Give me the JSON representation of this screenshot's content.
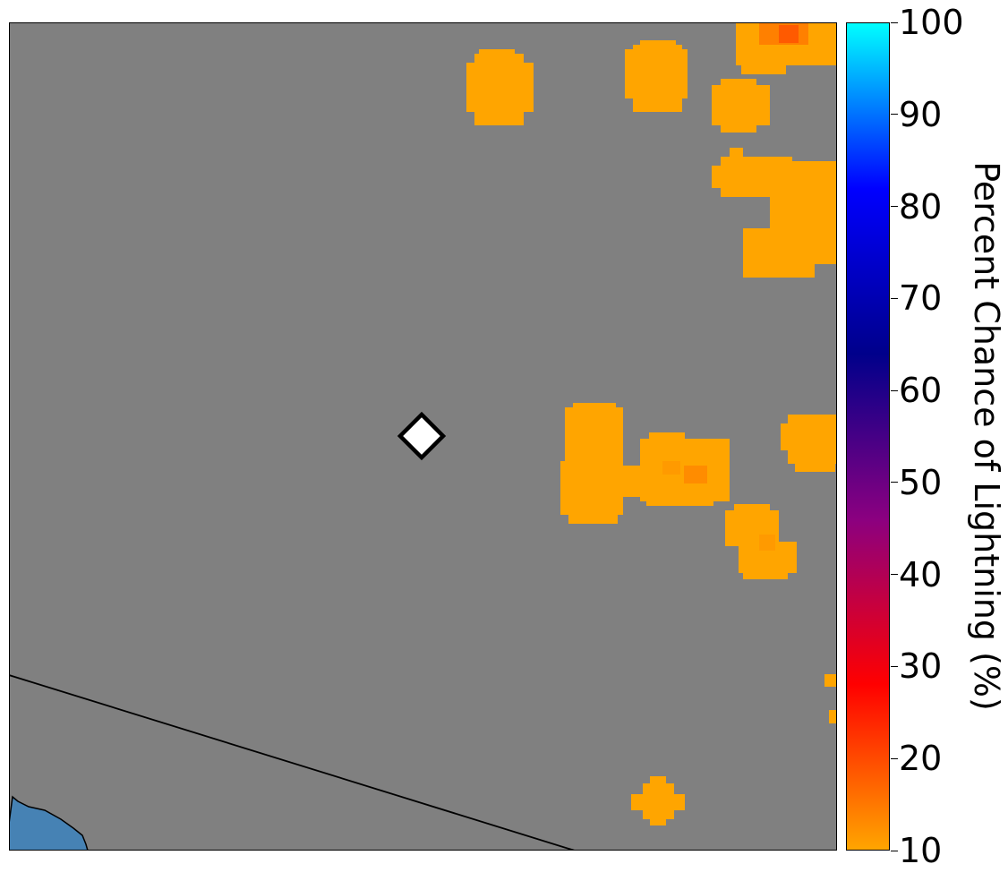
{
  "map": {
    "background_color": "#808080",
    "water_color": "#4682b4",
    "boundary_color": "#000000",
    "marker": {
      "shape": "diamond",
      "fill": "#ffffff",
      "stroke": "#000000"
    },
    "probability_patches": [
      {
        "name": "patch-north-center",
        "probability_pct": 11
      },
      {
        "name": "patch-north-right",
        "probability_pct": 11
      },
      {
        "name": "patch-top-right",
        "probability_pct": 17
      },
      {
        "name": "patch-upper-right-small",
        "probability_pct": 11
      },
      {
        "name": "patch-upper-right-large",
        "probability_pct": 11
      },
      {
        "name": "patch-center-right-west",
        "probability_pct": 11
      },
      {
        "name": "patch-center-right",
        "probability_pct": 13
      },
      {
        "name": "patch-east-edge",
        "probability_pct": 11
      },
      {
        "name": "patch-southeast",
        "probability_pct": 12
      },
      {
        "name": "patch-east-edge-small",
        "probability_pct": 11
      },
      {
        "name": "patch-south",
        "probability_pct": 11
      }
    ]
  },
  "colorbar": {
    "title": "Percent Chance of Lightning (%)",
    "min": 10,
    "max": 100,
    "ticks": [
      "10",
      "20",
      "30",
      "40",
      "50",
      "60",
      "70",
      "80",
      "90",
      "100"
    ],
    "color_stops": [
      "#ffa500",
      "#ff0000",
      "#8b0080",
      "#00008b",
      "#0000ff",
      "#00ffff"
    ]
  }
}
